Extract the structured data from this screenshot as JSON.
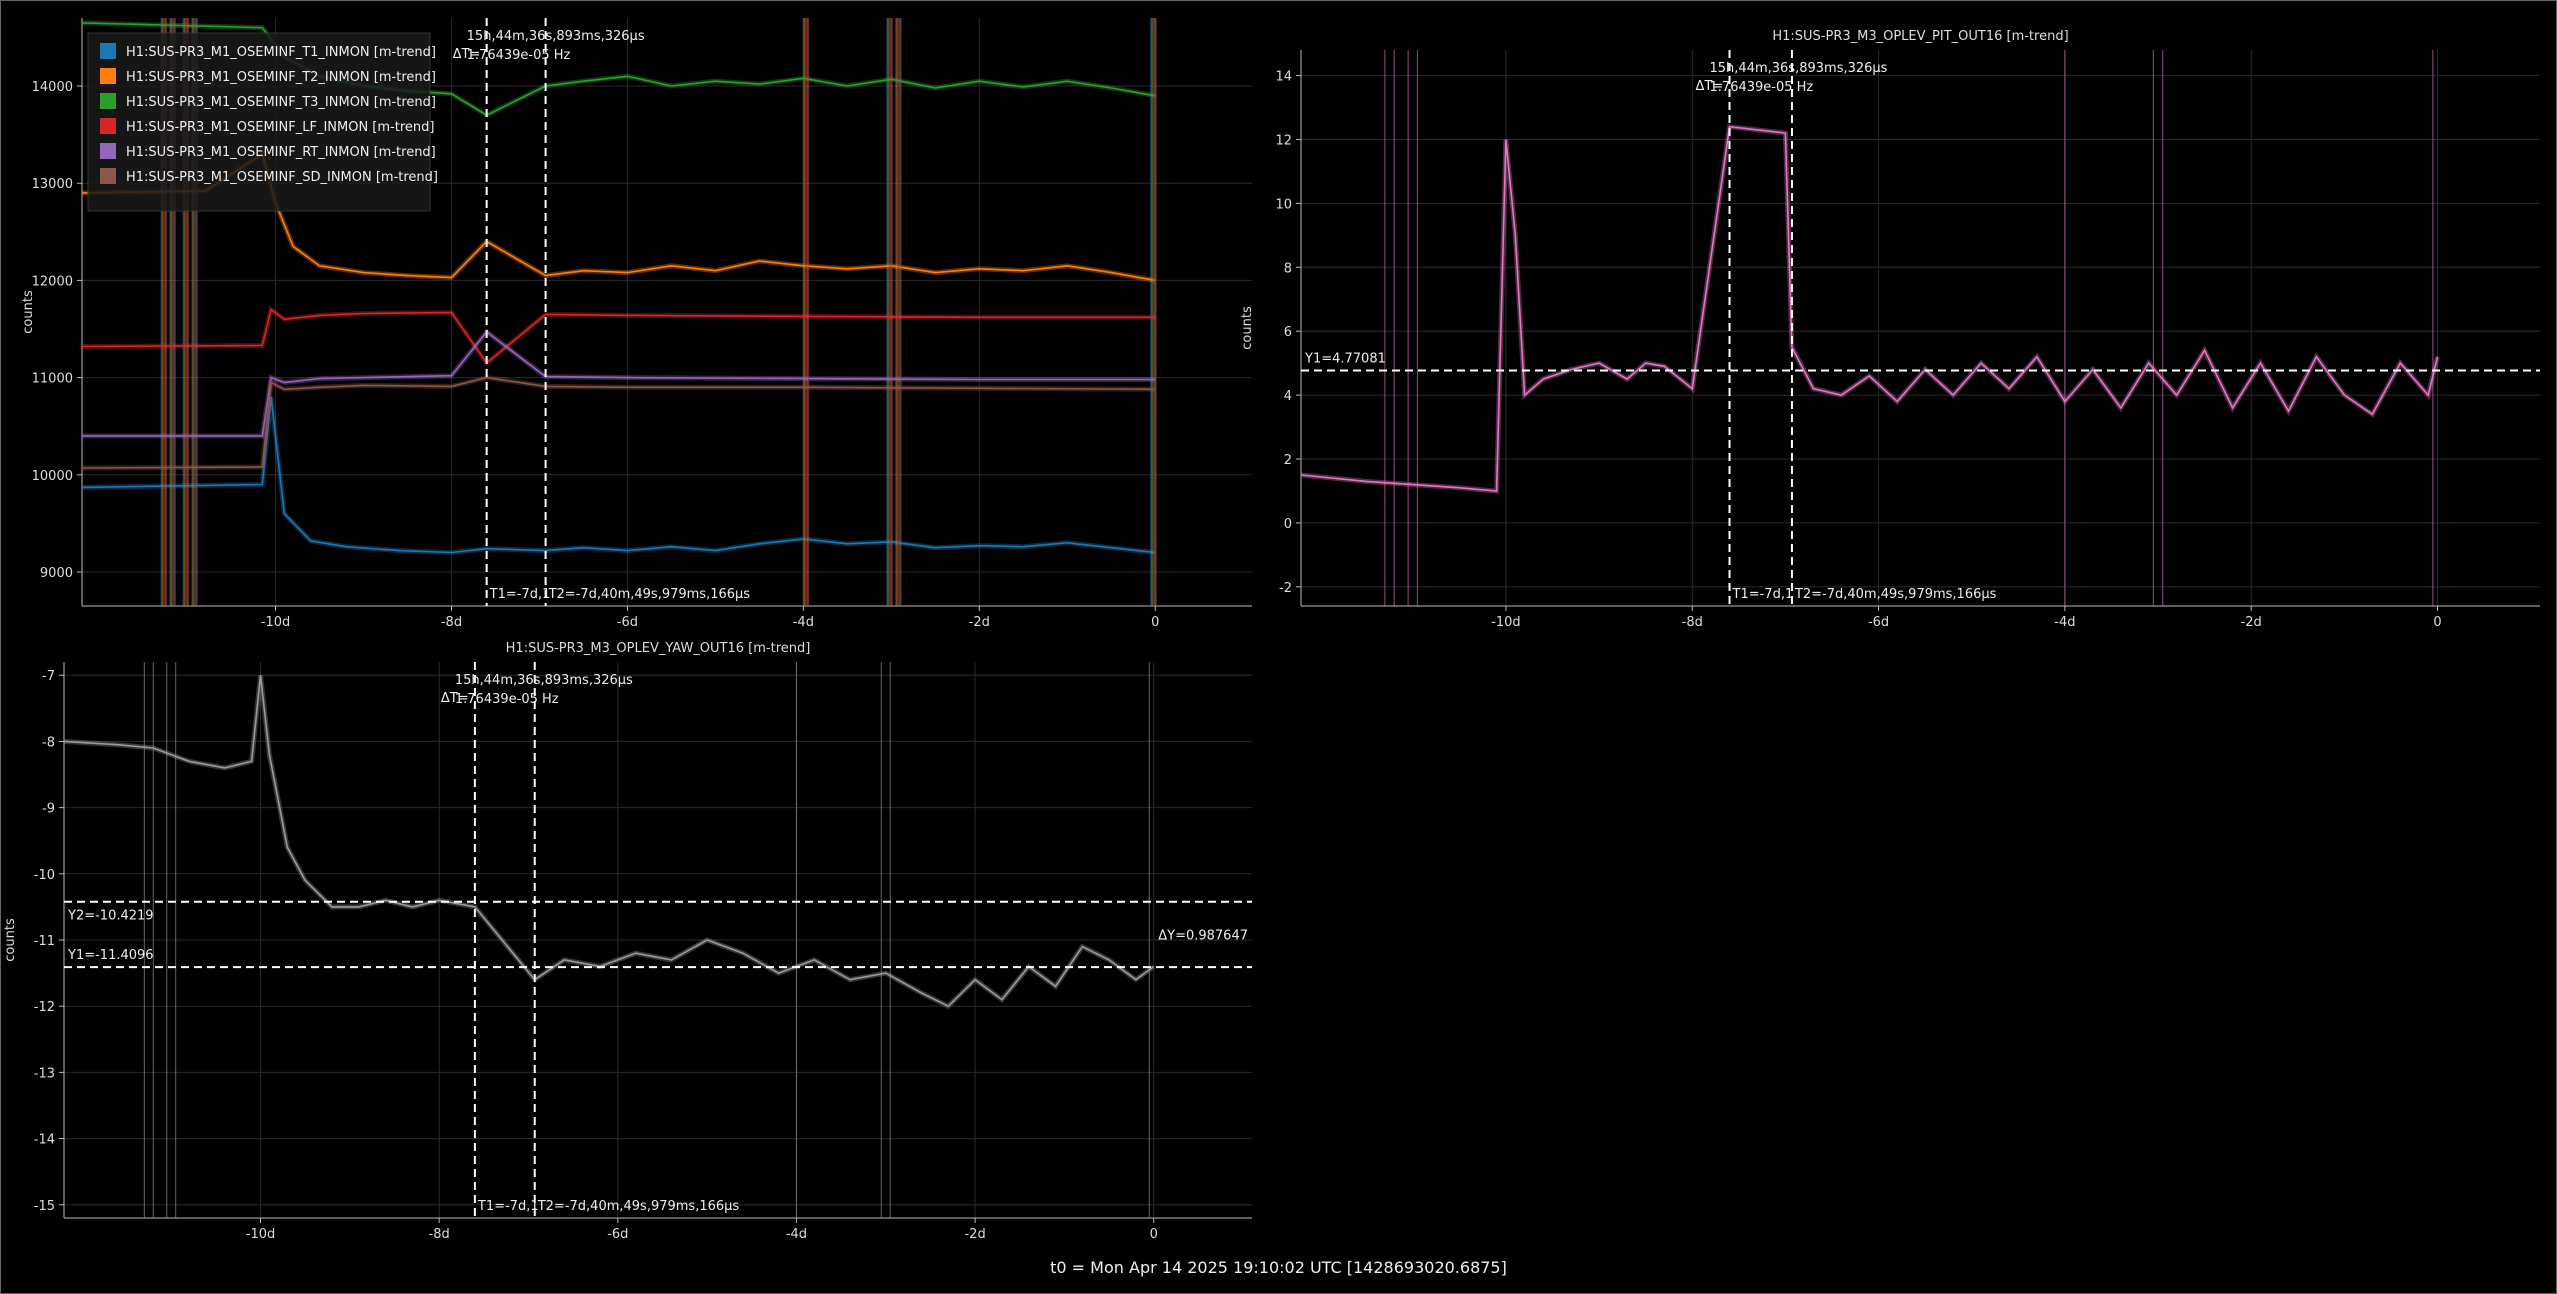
{
  "footer": "t0 = Mon Apr 14 2025 19:10:02 UTC [1428693020.6875]",
  "colors": {
    "t1": "#1f77b4",
    "t2": "#ff7f0e",
    "t3": "#2ca02c",
    "lf": "#d62728",
    "rt": "#9467bd",
    "sd": "#8c564b",
    "pit": "#e377c2",
    "yaw": "#9a9a9a"
  },
  "cursor_text": {
    "dt_label": "ΔT=",
    "dt_value": "15h,44m,36s,893ms,326μs",
    "dt_freq": "1.76439e-05 Hz",
    "t1_label": "T1=-7d,1",
    "t2_label": "T2=-7d,40m,49s,979ms,166μs"
  },
  "chart_data": [
    {
      "id": "osem",
      "type": "line",
      "title": "",
      "xlabel": "",
      "ylabel": "counts",
      "xlim": [
        -12.2,
        1.1
      ],
      "ylim": [
        8650,
        14700
      ],
      "xticks": [
        -10,
        -8,
        -6,
        -4,
        -2,
        0
      ],
      "xtick_labels": [
        "-10d",
        "-8d",
        "-6d",
        "-4d",
        "-2d",
        "0"
      ],
      "yticks": [
        9000,
        10000,
        11000,
        12000,
        13000,
        14000
      ],
      "ytick_labels": [
        "9000",
        "10000",
        "11000",
        "12000",
        "13000",
        "14000"
      ],
      "grid": true,
      "legend_position": "top-left",
      "cursor_t1": -7.6,
      "cursor_t2": -6.93,
      "series": [
        {
          "name": "H1:SUS-PR3_M1_OSEMINF_T1_INMON [m-trend]",
          "color_key": "t1",
          "x": [
            -12.2,
            -10.15,
            -10.05,
            -9.9,
            -9.6,
            -9.2,
            -8.6,
            -8.0,
            -7.6,
            -6.93,
            -6.5,
            -6,
            -5.5,
            -5,
            -4.5,
            -4,
            -3.5,
            -3,
            -2.5,
            -2,
            -1.5,
            -1,
            -0.5,
            0
          ],
          "y": [
            9870,
            9900,
            10800,
            9600,
            9320,
            9260,
            9220,
            9200,
            9240,
            9220,
            9250,
            9220,
            9260,
            9220,
            9290,
            9340,
            9290,
            9310,
            9250,
            9270,
            9260,
            9300,
            9250,
            9200
          ]
        },
        {
          "name": "H1:SUS-PR3_M1_OSEMINF_T2_INMON [m-trend]",
          "color_key": "t2",
          "x": [
            -12.2,
            -10.8,
            -10.15,
            -10.0,
            -9.8,
            -9.5,
            -9.0,
            -8.5,
            -8.0,
            -7.6,
            -6.93,
            -6.5,
            -6,
            -5.5,
            -5,
            -4.5,
            -4,
            -3.5,
            -3,
            -2.5,
            -2,
            -1.5,
            -1,
            -0.5,
            0
          ],
          "y": [
            12900,
            12920,
            13300,
            12800,
            12350,
            12150,
            12080,
            12050,
            12030,
            12400,
            12050,
            12100,
            12080,
            12150,
            12100,
            12200,
            12150,
            12120,
            12150,
            12080,
            12120,
            12100,
            12150,
            12080,
            12000
          ]
        },
        {
          "name": "H1:SUS-PR3_M1_OSEMINF_T3_INMON [m-trend]",
          "color_key": "t3",
          "x": [
            -12.2,
            -10.15,
            -9.9,
            -9.5,
            -9.0,
            -8.5,
            -8.0,
            -7.6,
            -6.93,
            -6.5,
            -6,
            -5.5,
            -5,
            -4.5,
            -4,
            -3.5,
            -3,
            -2.5,
            -2,
            -1.5,
            -1,
            -0.5,
            0
          ],
          "y": [
            14650,
            14600,
            14300,
            14100,
            14000,
            13950,
            13920,
            13700,
            14000,
            14050,
            14100,
            14000,
            14050,
            14020,
            14080,
            14000,
            14070,
            13980,
            14050,
            13990,
            14050,
            13980,
            13900
          ]
        },
        {
          "name": "H1:SUS-PR3_M1_OSEMINF_LF_INMON [m-trend]",
          "color_key": "lf",
          "x": [
            -12.2,
            -10.15,
            -10.05,
            -9.9,
            -9.5,
            -9.0,
            -8.0,
            -7.6,
            -6.93,
            -6.0,
            -4.0,
            -2.0,
            0
          ],
          "y": [
            11320,
            11330,
            11700,
            11600,
            11640,
            11660,
            11670,
            11150,
            11650,
            11640,
            11630,
            11620,
            11620
          ]
        },
        {
          "name": "H1:SUS-PR3_M1_OSEMINF_RT_INMON [m-trend]",
          "color_key": "rt",
          "x": [
            -12.2,
            -10.15,
            -10.05,
            -9.9,
            -9.5,
            -9.0,
            -8.0,
            -7.6,
            -6.93,
            -6.0,
            -4.0,
            -2.0,
            0
          ],
          "y": [
            10400,
            10400,
            11000,
            10950,
            10990,
            11000,
            11020,
            11470,
            11010,
            11000,
            10990,
            10980,
            10980
          ]
        },
        {
          "name": "H1:SUS-PR3_M1_OSEMINF_SD_INMON [m-trend]",
          "color_key": "sd",
          "x": [
            -12.2,
            -10.15,
            -10.05,
            -9.9,
            -9.5,
            -9.0,
            -8.0,
            -7.6,
            -6.93,
            -6.0,
            -4.0,
            -2.0,
            0
          ],
          "y": [
            10070,
            10080,
            10950,
            10880,
            10900,
            10920,
            10910,
            11000,
            10910,
            10900,
            10900,
            10890,
            10880
          ]
        }
      ]
    },
    {
      "id": "pit",
      "type": "line",
      "title": "H1:SUS-PR3_M3_OPLEV_PIT_OUT16 [m-trend]",
      "xlabel": "",
      "ylabel": "counts",
      "xlim": [
        -12.2,
        1.1
      ],
      "ylim": [
        -2.6,
        14.8
      ],
      "xticks": [
        -10,
        -8,
        -6,
        -4,
        -2,
        0
      ],
      "xtick_labels": [
        "-10d",
        "-8d",
        "-6d",
        "-4d",
        "-2d",
        "0"
      ],
      "yticks": [
        -2,
        0,
        2,
        4,
        6,
        8,
        10,
        12,
        14
      ],
      "ytick_labels": [
        "-2",
        "0",
        "2",
        "4",
        "6",
        "8",
        "10",
        "12",
        "14"
      ],
      "grid": true,
      "cursor_t1": -7.6,
      "cursor_t2": -6.93,
      "hline": 4.77081,
      "hline_label": "Y1=4.77081",
      "series": [
        {
          "name": "H1:SUS-PR3_M3_OPLEV_PIT_OUT16 [m-trend]",
          "color_key": "pit",
          "x": [
            -12.2,
            -11.5,
            -11.0,
            -10.5,
            -10.1,
            -10.0,
            -9.9,
            -9.8,
            -9.6,
            -9.3,
            -9.0,
            -8.7,
            -8.5,
            -8.3,
            -8.0,
            -7.6,
            -7.0,
            -6.93,
            -6.7,
            -6.4,
            -6.1,
            -5.8,
            -5.5,
            -5.2,
            -4.9,
            -4.6,
            -4.3,
            -4.0,
            -3.7,
            -3.4,
            -3.1,
            -2.8,
            -2.5,
            -2.2,
            -1.9,
            -1.6,
            -1.3,
            -1.0,
            -0.7,
            -0.4,
            -0.1,
            0
          ],
          "y": [
            1.5,
            1.3,
            1.2,
            1.1,
            1.0,
            12.0,
            9.0,
            4.0,
            4.5,
            4.8,
            5.0,
            4.5,
            5.0,
            4.9,
            4.2,
            12.4,
            12.2,
            5.5,
            4.2,
            4.0,
            4.6,
            3.8,
            4.8,
            4.0,
            5.0,
            4.2,
            5.2,
            3.8,
            4.8,
            3.6,
            5.0,
            4.0,
            5.4,
            3.6,
            5.0,
            3.5,
            5.2,
            4.0,
            3.4,
            5.0,
            4.0,
            5.2
          ]
        }
      ]
    },
    {
      "id": "yaw",
      "type": "line",
      "title": "H1:SUS-PR3_M3_OPLEV_YAW_OUT16 [m-trend]",
      "xlabel": "",
      "ylabel": "counts",
      "xlim": [
        -12.2,
        1.1
      ],
      "ylim": [
        -15.2,
        -6.8
      ],
      "xticks": [
        -10,
        -8,
        -6,
        -4,
        -2,
        0
      ],
      "xtick_labels": [
        "-10d",
        "-8d",
        "-6d",
        "-4d",
        "-2d",
        "0"
      ],
      "yticks": [
        -15,
        -14,
        -13,
        -12,
        -11,
        -10,
        -9,
        -8,
        -7
      ],
      "ytick_labels": [
        "-15",
        "-14",
        "-13",
        "-12",
        "-11",
        "-10",
        "-9",
        "-8",
        "-7"
      ],
      "grid": true,
      "cursor_t1": -7.6,
      "cursor_t2": -6.93,
      "hline_y1": -11.4096,
      "hline_y2": -10.4219,
      "y1_label": "Y1=-11.4096",
      "y2_label": "Y2=-10.4219",
      "dy_label": "ΔY=0.987647",
      "series": [
        {
          "name": "H1:SUS-PR3_M3_OPLEV_YAW_OUT16 [m-trend]",
          "color_key": "yaw",
          "x": [
            -12.2,
            -11.6,
            -11.2,
            -10.8,
            -10.4,
            -10.1,
            -10.0,
            -9.9,
            -9.7,
            -9.5,
            -9.2,
            -8.9,
            -8.6,
            -8.3,
            -8.0,
            -7.6,
            -6.93,
            -6.6,
            -6.2,
            -5.8,
            -5.4,
            -5.0,
            -4.6,
            -4.2,
            -3.8,
            -3.4,
            -3.0,
            -2.6,
            -2.3,
            -2.0,
            -1.7,
            -1.4,
            -1.1,
            -0.8,
            -0.5,
            -0.2,
            0
          ],
          "y": [
            -8.0,
            -8.05,
            -8.1,
            -8.3,
            -8.4,
            -8.3,
            -7.0,
            -8.2,
            -9.6,
            -10.1,
            -10.5,
            -10.5,
            -10.4,
            -10.5,
            -10.4,
            -10.5,
            -11.6,
            -11.3,
            -11.4,
            -11.2,
            -11.3,
            -11.0,
            -11.2,
            -11.5,
            -11.3,
            -11.6,
            -11.5,
            -11.8,
            -12.0,
            -11.6,
            -11.9,
            -11.4,
            -11.7,
            -11.1,
            -11.3,
            -11.6,
            -11.4
          ]
        }
      ]
    }
  ]
}
